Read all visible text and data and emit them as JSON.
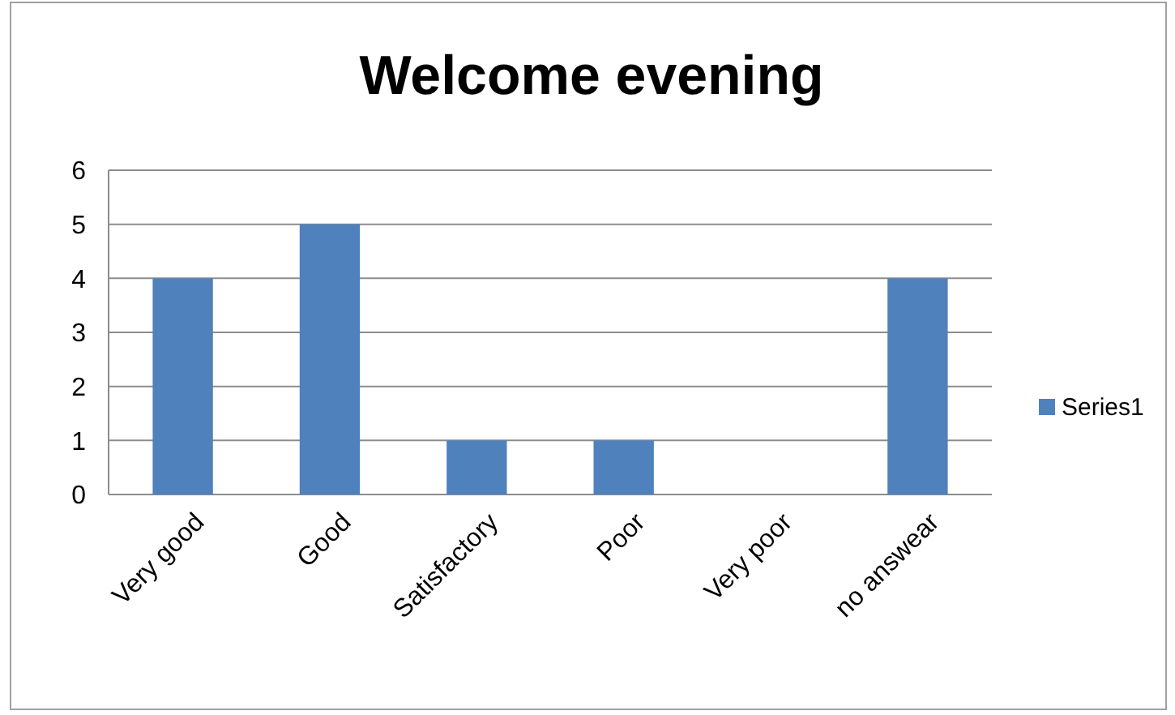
{
  "chart_data": {
    "type": "bar",
    "title": "Welcome evening",
    "categories": [
      "Very good",
      "Good",
      "Satisfactory",
      "Poor",
      "Very poor",
      "no answear"
    ],
    "series": [
      {
        "name": "Series1",
        "color": "#4f81bd",
        "values": [
          4,
          5,
          1,
          1,
          0,
          4
        ]
      }
    ],
    "ylim": [
      0,
      6
    ],
    "yticks": [
      0,
      1,
      2,
      3,
      4,
      5,
      6
    ],
    "grid": "y",
    "legend": "right"
  }
}
